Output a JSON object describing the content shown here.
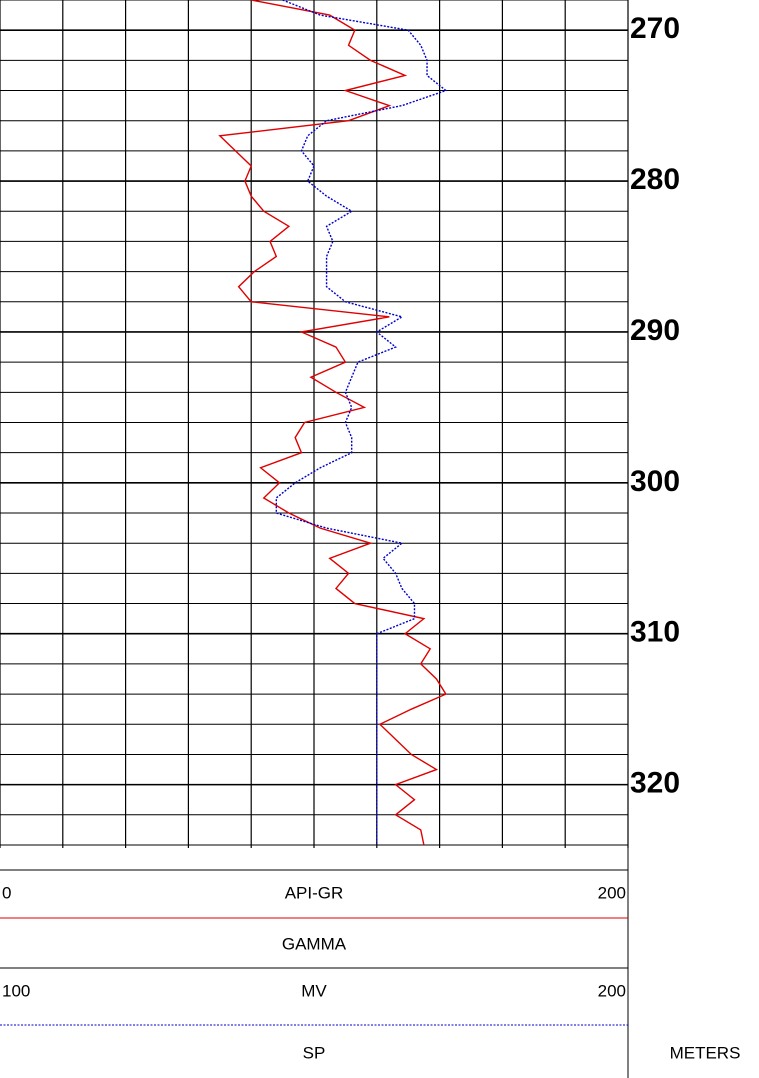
{
  "chart_data": {
    "type": "well-log",
    "depth_label": "METERS",
    "ylim": [
      268,
      324.2
    ],
    "yticks": [
      270,
      280,
      290,
      300,
      310,
      320
    ],
    "minor_yticks": [
      268,
      270,
      272,
      274,
      276,
      278,
      280,
      282,
      284,
      286,
      288,
      290,
      292,
      294,
      296,
      298,
      300,
      302,
      304,
      306,
      308,
      310,
      312,
      314,
      316,
      318,
      320,
      322,
      324
    ],
    "xticks": [
      0,
      20,
      40,
      60,
      80,
      100,
      120,
      140,
      160,
      180,
      200
    ],
    "depth": [
      268,
      269,
      270,
      271,
      272,
      273,
      274,
      275,
      276,
      277,
      278,
      279,
      280,
      281,
      282,
      283,
      284,
      285,
      286,
      287,
      288,
      289,
      290,
      291,
      292,
      293,
      294,
      295,
      296,
      297,
      298,
      299,
      300,
      301,
      302,
      303,
      304,
      305,
      306,
      307,
      308,
      309,
      310,
      311,
      312,
      313,
      314,
      315,
      316,
      317,
      318,
      319,
      320,
      321,
      322,
      323,
      324
    ],
    "series": [
      {
        "name": "GAMMA",
        "unit": "API-GR",
        "color": "#e00000",
        "style": "solid",
        "xlim": [
          0,
          200
        ],
        "values": [
          80,
          105,
          113,
          111,
          118,
          129,
          110,
          124,
          111,
          70,
          75,
          80,
          78,
          80,
          84,
          92,
          86,
          88,
          81,
          76,
          80,
          124,
          96,
          107,
          110,
          99,
          107,
          116,
          97,
          94,
          96,
          83,
          89,
          84,
          92,
          102,
          118,
          105,
          111,
          107,
          113,
          135,
          129,
          137,
          134,
          139,
          142,
          131,
          121,
          126,
          131,
          139,
          126,
          132,
          126,
          134,
          135
        ]
      },
      {
        "name": "SP",
        "unit": "MV",
        "color": "#0000cc",
        "style": "dotted",
        "xlim": [
          100,
          200
        ],
        "values": [
          145,
          151,
          165,
          167,
          168,
          168,
          171,
          164,
          152,
          149,
          148,
          150,
          149,
          152,
          156,
          152,
          153,
          152,
          152,
          152,
          155,
          164,
          160,
          163,
          157,
          156,
          155,
          156,
          155,
          156,
          156,
          151,
          147,
          144,
          144,
          152,
          164,
          161,
          163,
          164,
          166,
          166,
          160,
          160,
          160,
          160,
          160,
          160,
          160,
          160,
          160,
          160,
          160,
          160,
          160,
          160,
          160
        ]
      }
    ]
  }
}
